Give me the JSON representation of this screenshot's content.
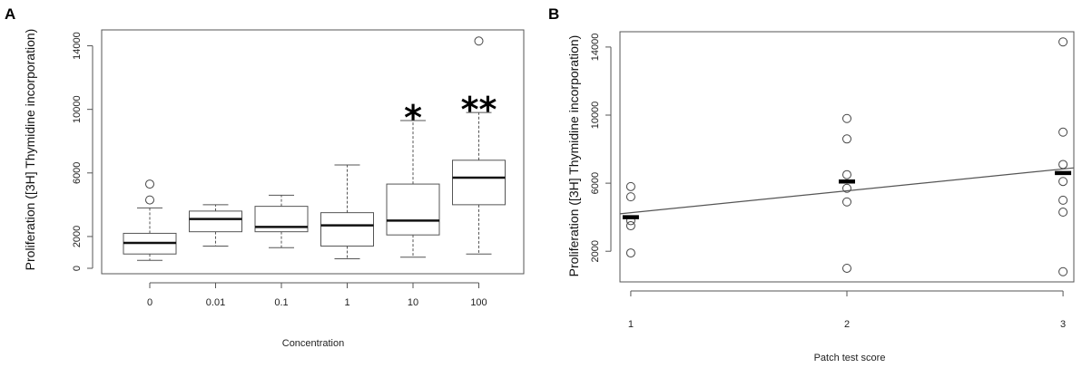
{
  "chart_data": [
    {
      "panel": "A",
      "type": "box",
      "xlabel": "Concentration",
      "ylabel": "Proliferation ([3H] Thymidine incorporation)",
      "ylim": [
        0,
        15000
      ],
      "yticks": [
        0,
        2000,
        6000,
        10000,
        14000
      ],
      "categories": [
        "0",
        "0.01",
        "0.1",
        "1",
        "10",
        "100"
      ],
      "boxes": [
        {
          "lower": 500,
          "q1": 900,
          "median": 1600,
          "q3": 2200,
          "upper": 3800,
          "outliers": [
            4300,
            5300
          ],
          "sig": ""
        },
        {
          "lower": 1400,
          "q1": 2300,
          "median": 3100,
          "q3": 3600,
          "upper": 4000,
          "outliers": [],
          "sig": ""
        },
        {
          "lower": 1300,
          "q1": 2300,
          "median": 2600,
          "q3": 3900,
          "upper": 4600,
          "outliers": [],
          "sig": ""
        },
        {
          "lower": 600,
          "q1": 1400,
          "median": 2700,
          "q3": 3500,
          "upper": 6500,
          "outliers": [],
          "sig": ""
        },
        {
          "lower": 700,
          "q1": 2100,
          "median": 3000,
          "q3": 5300,
          "upper": 9300,
          "outliers": [],
          "sig": "*"
        },
        {
          "lower": 900,
          "q1": 4000,
          "median": 5700,
          "q3": 6800,
          "upper": 9800,
          "outliers": [
            14300
          ],
          "sig": "**"
        }
      ]
    },
    {
      "panel": "B",
      "type": "scatter",
      "xlabel": "Patch test score",
      "ylabel": "Proliferation ([3H] Thymidine incorporation)",
      "xlim": [
        0.95,
        3.05
      ],
      "ylim": [
        200,
        14900
      ],
      "xticks": [
        1,
        2,
        3
      ],
      "yticks": [
        2000,
        6000,
        10000,
        14000
      ],
      "points": [
        {
          "x": 1,
          "y": 1900
        },
        {
          "x": 1,
          "y": 3500
        },
        {
          "x": 1,
          "y": 3800
        },
        {
          "x": 1,
          "y": 5200
        },
        {
          "x": 1,
          "y": 5800
        },
        {
          "x": 2,
          "y": 1000
        },
        {
          "x": 2,
          "y": 4900
        },
        {
          "x": 2,
          "y": 5700
        },
        {
          "x": 2,
          "y": 6500
        },
        {
          "x": 2,
          "y": 8600
        },
        {
          "x": 2,
          "y": 9800
        },
        {
          "x": 3,
          "y": 800
        },
        {
          "x": 3,
          "y": 4300
        },
        {
          "x": 3,
          "y": 5000
        },
        {
          "x": 3,
          "y": 6100
        },
        {
          "x": 3,
          "y": 7100
        },
        {
          "x": 3,
          "y": 9000
        },
        {
          "x": 3,
          "y": 14300
        }
      ],
      "means": [
        {
          "x": 1,
          "y": 4000
        },
        {
          "x": 2,
          "y": 6100
        },
        {
          "x": 3,
          "y": 6600
        }
      ],
      "fit_line": {
        "x": [
          0.95,
          3.05
        ],
        "y": [
          4200,
          6900
        ]
      }
    }
  ]
}
